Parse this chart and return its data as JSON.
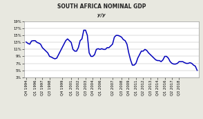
{
  "title": "SOUTH AFRICA NOMINAL GDP",
  "subtitle": "y/y",
  "line_color": "#0000BB",
  "background_color": "#E8E8E0",
  "plot_bg_color": "#FFFFFF",
  "ylim": [
    3,
    19
  ],
  "yticks": [
    3,
    5,
    7,
    9,
    11,
    13,
    15,
    17,
    19
  ],
  "ytick_labels": [
    "3%",
    "5%",
    "7%",
    "9%",
    "11%",
    "13%",
    "15%",
    "17%",
    "19%"
  ],
  "title_fontsize": 5.5,
  "subtitle_fontsize": 5.0,
  "tick_fontsize": 3.8,
  "line_width": 1.1,
  "x_tick_labels": [
    "Q4 1994",
    "Q1 1996",
    "Q2 1997",
    "Q3 1998",
    "Q4 1999",
    "Q1 2001",
    "Q2 2002",
    "Q3 2003",
    "Q4 2004",
    "Q1 2006",
    "Q2 2007",
    "Q3 2008",
    "Q4 2009",
    "Q1 2011",
    "Q2 2012",
    "Q3 2013",
    "Q4 2014",
    "Q1 2016",
    "Q2 2017",
    "Q3 2018"
  ],
  "raw_data": [
    [
      0,
      13.1
    ],
    [
      1,
      12.7
    ],
    [
      2,
      12.5
    ],
    [
      3,
      13.4
    ],
    [
      4,
      13.5
    ],
    [
      5,
      13.5
    ],
    [
      6,
      13.0
    ],
    [
      7,
      12.8
    ],
    [
      8,
      12.5
    ],
    [
      9,
      11.5
    ],
    [
      10,
      11.0
    ],
    [
      11,
      10.5
    ],
    [
      12,
      10.0
    ],
    [
      13,
      9.0
    ],
    [
      14,
      8.8
    ],
    [
      15,
      8.5
    ],
    [
      16,
      8.3
    ],
    [
      17,
      8.5
    ],
    [
      18,
      9.5
    ],
    [
      19,
      10.5
    ],
    [
      20,
      11.5
    ],
    [
      21,
      12.5
    ],
    [
      22,
      13.5
    ],
    [
      23,
      14.0
    ],
    [
      24,
      13.5
    ],
    [
      25,
      13.0
    ],
    [
      26,
      11.0
    ],
    [
      27,
      10.5
    ],
    [
      28,
      10.5
    ],
    [
      29,
      11.5
    ],
    [
      30,
      13.5
    ],
    [
      31,
      14.0
    ],
    [
      32,
      16.5
    ],
    [
      33,
      16.5
    ],
    [
      34,
      15.0
    ],
    [
      35,
      10.0
    ],
    [
      36,
      9.0
    ],
    [
      37,
      9.0
    ],
    [
      38,
      9.5
    ],
    [
      39,
      11.0
    ],
    [
      40,
      11.2
    ],
    [
      41,
      11.0
    ],
    [
      42,
      11.2
    ],
    [
      43,
      11.0
    ],
    [
      44,
      11.0
    ],
    [
      45,
      11.5
    ],
    [
      46,
      11.5
    ],
    [
      47,
      12.0
    ],
    [
      48,
      12.5
    ],
    [
      49,
      14.5
    ],
    [
      50,
      15.0
    ],
    [
      51,
      15.0
    ],
    [
      52,
      14.8
    ],
    [
      53,
      14.5
    ],
    [
      54,
      13.8
    ],
    [
      55,
      13.5
    ],
    [
      56,
      12.5
    ],
    [
      57,
      10.0
    ],
    [
      58,
      8.0
    ],
    [
      59,
      6.5
    ],
    [
      60,
      6.5
    ],
    [
      61,
      7.0
    ],
    [
      62,
      8.5
    ],
    [
      63,
      9.5
    ],
    [
      64,
      10.5
    ],
    [
      65,
      10.5
    ],
    [
      66,
      11.0
    ],
    [
      67,
      10.7
    ],
    [
      68,
      10.0
    ],
    [
      69,
      9.5
    ],
    [
      70,
      9.0
    ],
    [
      71,
      8.5
    ],
    [
      72,
      8.0
    ],
    [
      73,
      7.8
    ],
    [
      74,
      7.8
    ],
    [
      75,
      7.5
    ],
    [
      76,
      8.0
    ],
    [
      77,
      9.0
    ],
    [
      78,
      9.0
    ],
    [
      79,
      8.5
    ],
    [
      80,
      7.5
    ],
    [
      81,
      7.0
    ],
    [
      82,
      6.8
    ],
    [
      83,
      6.8
    ],
    [
      84,
      7.0
    ],
    [
      85,
      7.5
    ],
    [
      86,
      7.5
    ],
    [
      87,
      7.5
    ],
    [
      88,
      7.2
    ],
    [
      89,
      7.0
    ],
    [
      90,
      7.0
    ],
    [
      91,
      7.2
    ],
    [
      92,
      7.0
    ],
    [
      93,
      6.5
    ],
    [
      94,
      6.2
    ],
    [
      95,
      5.0
    ]
  ],
  "x_tick_positions": [
    0,
    5,
    9,
    13,
    20,
    25,
    29,
    33,
    37,
    41,
    48,
    53,
    57,
    61,
    65,
    69,
    73,
    77,
    81,
    85
  ]
}
